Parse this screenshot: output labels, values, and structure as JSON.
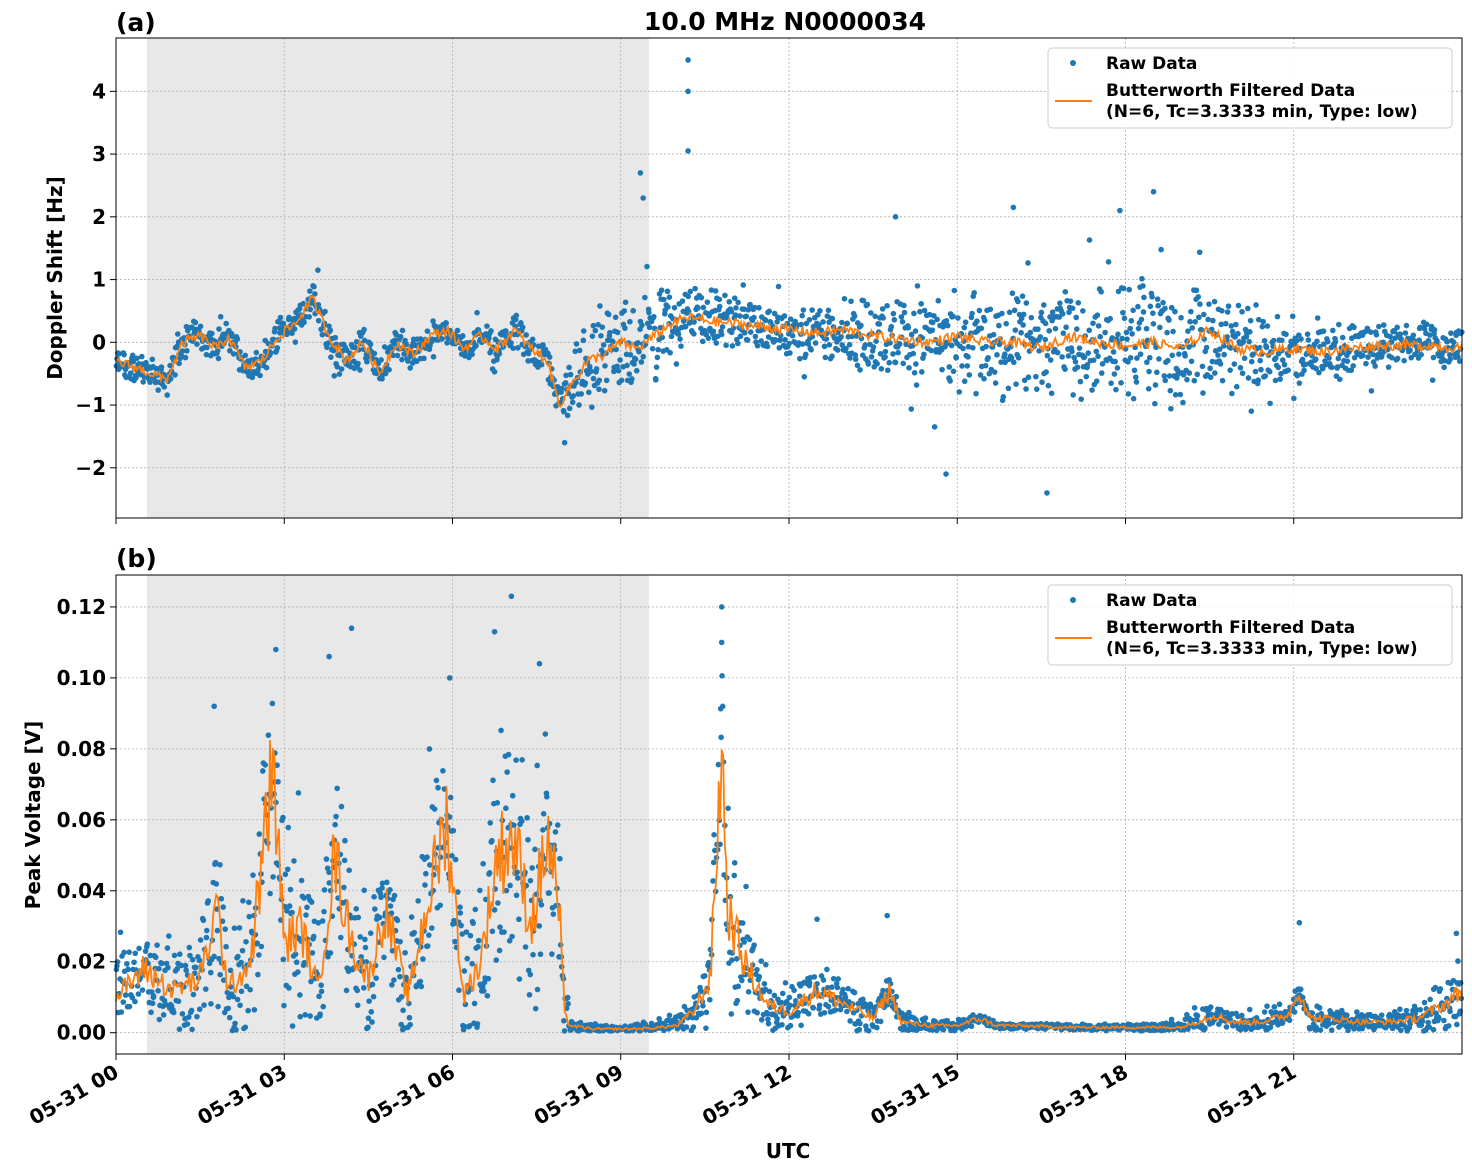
{
  "chart_data": [
    {
      "type": "scatter",
      "panel_label": "(a)",
      "title": "10.0 MHz N0000034",
      "xlabel": "",
      "ylabel": "Doppler Shift [Hz]",
      "x_ticks": [
        "05-31 00",
        "05-31 03",
        "05-31 06",
        "05-31 09",
        "05-31 12",
        "05-31 15",
        "05-31 18",
        "05-31 21"
      ],
      "x_unit": "hours UTC",
      "xlim": [
        0,
        24
      ],
      "ylim": [
        -2.8,
        4.85
      ],
      "y_ticks": [
        -2,
        -1,
        0,
        1,
        2,
        3,
        4
      ],
      "y_tick_labels": [
        "−2",
        "−1",
        "0",
        "1",
        "2",
        "3",
        "4"
      ],
      "grid": true,
      "shaded_span_hours": [
        0.55,
        9.5
      ],
      "legend_position": "top-right",
      "legend": [
        "Raw Data",
        "Butterworth Filtered Data",
        "(N=6, Tc=3.3333 min, Type: low)"
      ],
      "series": [
        {
          "name": "Butterworth Filtered Data (N=6, Tc=3.3333 min, Type: low)",
          "color": "#ff7f0e",
          "x": [
            0,
            0.5,
            0.9,
            1.2,
            1.5,
            1.8,
            2.0,
            2.3,
            2.6,
            2.9,
            3.2,
            3.5,
            3.8,
            4.1,
            4.4,
            4.7,
            5.0,
            5.3,
            5.6,
            5.9,
            6.2,
            6.5,
            6.8,
            7.1,
            7.4,
            7.7,
            7.9,
            8.1,
            8.4,
            8.7,
            9.0,
            9.3,
            9.6,
            9.9,
            10.2,
            10.5,
            11.0,
            11.5,
            12.0,
            12.5,
            13.0,
            13.5,
            14.0,
            14.5,
            15.0,
            15.5,
            16.0,
            16.5,
            17.0,
            17.5,
            18.0,
            18.5,
            19.0,
            19.5,
            20.0,
            20.5,
            21.0,
            21.5,
            22.0,
            22.5,
            23.0,
            23.5,
            24.0
          ],
          "y": [
            -0.3,
            -0.45,
            -0.6,
            0.0,
            0.1,
            -0.1,
            0.1,
            -0.4,
            -0.3,
            0.1,
            0.3,
            0.7,
            0.1,
            -0.3,
            0.0,
            -0.5,
            0.0,
            -0.2,
            0.1,
            0.2,
            -0.1,
            0.1,
            -0.1,
            0.2,
            -0.1,
            -0.3,
            -1.0,
            -0.7,
            -0.3,
            -0.2,
            0.0,
            -0.1,
            0.1,
            0.3,
            0.4,
            0.35,
            0.3,
            0.25,
            0.2,
            0.15,
            0.2,
            0.1,
            0.05,
            0.0,
            0.1,
            0.0,
            0.0,
            -0.1,
            0.1,
            0.0,
            -0.05,
            0.0,
            -0.1,
            0.2,
            -0.1,
            -0.15,
            -0.1,
            -0.15,
            -0.1,
            -0.05,
            -0.05,
            -0.05,
            -0.1
          ]
        },
        {
          "name": "Raw Data",
          "color": "#1f77b4",
          "spread_x": [
            0,
            1,
            2,
            3,
            4,
            5,
            6,
            7,
            7.9,
            8.5,
            9.5,
            10.5,
            11.5,
            12.5,
            13.5,
            14.5,
            15.5,
            16.5,
            17.5,
            18.5,
            19.5,
            20.5,
            21.5,
            22.5,
            24
          ],
          "spread_halfwidth": [
            0.25,
            0.3,
            0.3,
            0.3,
            0.35,
            0.3,
            0.25,
            0.3,
            0.3,
            0.9,
            0.9,
            0.55,
            0.45,
            0.5,
            0.7,
            0.85,
            0.95,
            1.05,
            1.1,
            1.1,
            1.0,
            0.7,
            0.55,
            0.45,
            0.35
          ]
        }
      ]
    },
    {
      "type": "scatter",
      "panel_label": "(b)",
      "title": "",
      "xlabel": "UTC",
      "ylabel": "Peak Voltage [V]",
      "x_ticks": [
        "05-31 00",
        "05-31 03",
        "05-31 06",
        "05-31 09",
        "05-31 12",
        "05-31 15",
        "05-31 18",
        "05-31 21"
      ],
      "x_unit": "hours UTC",
      "xlim": [
        0,
        24
      ],
      "ylim": [
        -0.006,
        0.129
      ],
      "y_ticks": [
        0.0,
        0.02,
        0.04,
        0.06,
        0.08,
        0.1,
        0.12
      ],
      "y_tick_labels": [
        "0.00",
        "0.02",
        "0.04",
        "0.06",
        "0.08",
        "0.10",
        "0.12"
      ],
      "grid": true,
      "shaded_span_hours": [
        0.55,
        9.5
      ],
      "legend_position": "top-right",
      "legend": [
        "Raw Data",
        "Butterworth Filtered Data",
        "(N=6, Tc=3.3333 min, Type: low)"
      ],
      "series": [
        {
          "name": "Butterworth Filtered Data (N=6, Tc=3.3333 min, Type: low)",
          "color": "#ff7f0e",
          "x": [
            0,
            0.5,
            1.0,
            1.5,
            1.8,
            2.0,
            2.4,
            2.8,
            3.0,
            3.3,
            3.6,
            3.9,
            4.2,
            4.5,
            4.8,
            5.2,
            5.6,
            5.9,
            6.2,
            6.5,
            6.8,
            7.1,
            7.4,
            7.7,
            7.9,
            8.0,
            8.1,
            8.5,
            9.0,
            9.5,
            10.0,
            10.3,
            10.6,
            10.8,
            10.9,
            11.2,
            11.6,
            12.0,
            12.5,
            13.0,
            13.5,
            13.8,
            14.0,
            14.5,
            15.0,
            15.4,
            15.7,
            16.0,
            17.0,
            18.0,
            19.0,
            19.6,
            19.9,
            20.4,
            20.9,
            21.1,
            21.3,
            21.7,
            22.2,
            22.7,
            23.2,
            23.7,
            24.0
          ],
          "y": [
            0.01,
            0.018,
            0.012,
            0.015,
            0.035,
            0.012,
            0.02,
            0.075,
            0.025,
            0.03,
            0.012,
            0.05,
            0.025,
            0.015,
            0.035,
            0.01,
            0.04,
            0.06,
            0.01,
            0.02,
            0.05,
            0.055,
            0.03,
            0.055,
            0.035,
            0.005,
            0.002,
            0.001,
            0.001,
            0.0012,
            0.002,
            0.006,
            0.015,
            0.082,
            0.035,
            0.02,
            0.008,
            0.006,
            0.012,
            0.008,
            0.004,
            0.012,
            0.003,
            0.002,
            0.002,
            0.004,
            0.002,
            0.002,
            0.0015,
            0.0015,
            0.0015,
            0.005,
            0.003,
            0.003,
            0.005,
            0.012,
            0.004,
            0.004,
            0.003,
            0.003,
            0.004,
            0.008,
            0.012
          ]
        },
        {
          "name": "Raw Data",
          "color": "#1f77b4",
          "spread_x": [
            0,
            1,
            2,
            3,
            4,
            5,
            6,
            7,
            7.9,
            8.1,
            9,
            10,
            10.5,
            10.8,
            11.2,
            12,
            13,
            14,
            15,
            16,
            18,
            19.5,
            20,
            21,
            22,
            23,
            24
          ],
          "spread_halfwidth": [
            0.012,
            0.014,
            0.022,
            0.035,
            0.03,
            0.02,
            0.03,
            0.04,
            0.035,
            0.002,
            0.001,
            0.004,
            0.01,
            0.04,
            0.015,
            0.008,
            0.007,
            0.004,
            0.002,
            0.001,
            0.001,
            0.004,
            0.003,
            0.005,
            0.003,
            0.004,
            0.012
          ]
        }
      ]
    }
  ]
}
